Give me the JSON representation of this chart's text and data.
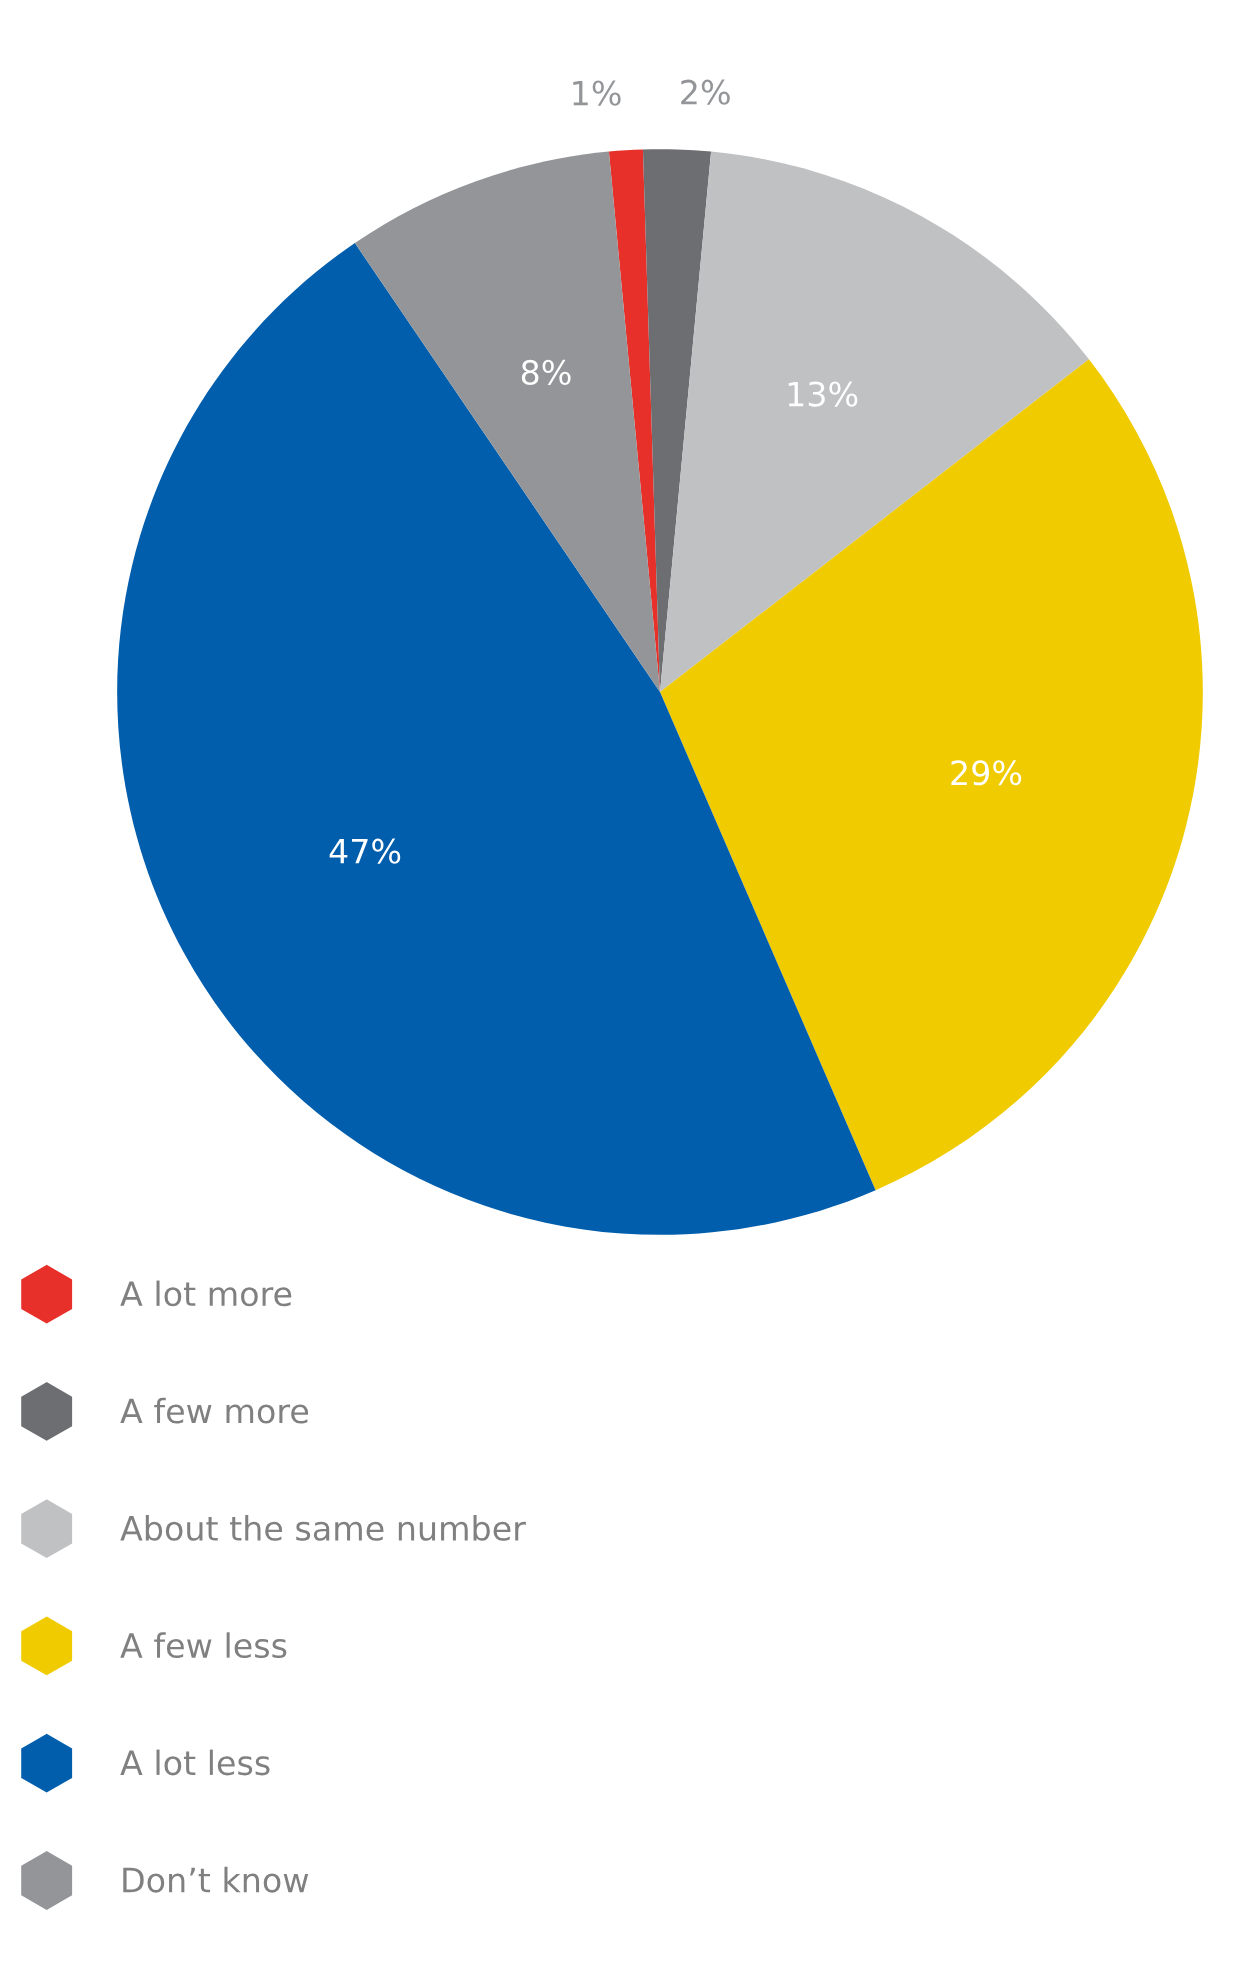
{
  "chart_data": {
    "type": "pie",
    "categories": [
      "A lot more",
      "A few more",
      "About the same number",
      "A few less",
      "A lot less",
      "Don’t know"
    ],
    "values": [
      1,
      2,
      13,
      29,
      47,
      8
    ],
    "colors": [
      "#e8302a",
      "#6d6e71",
      "#c0c1c3",
      "#f0cb00",
      "#005eac",
      "#939598"
    ],
    "value_labels": [
      "1%",
      "2%",
      "13%",
      "29%",
      "47%",
      "8%"
    ],
    "legend": "bottom"
  }
}
